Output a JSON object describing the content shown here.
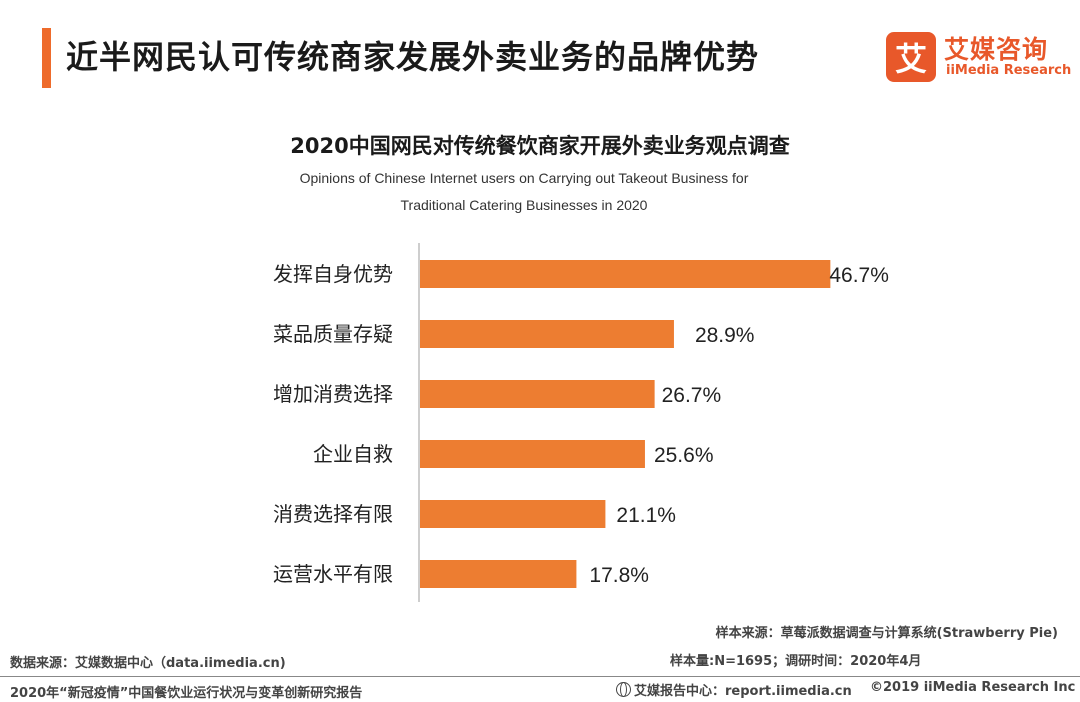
{
  "header": {
    "title": "近半网民认可传统商家发展外卖业务的品牌优势",
    "accent_color": "#ee6b2b"
  },
  "logo": {
    "mark": "艾",
    "name_cn": "艾媒咨询",
    "name_en": "iiMedia Research"
  },
  "chart_data": {
    "type": "bar",
    "orientation": "horizontal",
    "title": "2020中国网民对传统餐饮商家开展外卖业务观点调查",
    "subtitle_lines": [
      "Opinions of Chinese Internet users on Carrying out Takeout Business for",
      "Traditional Catering Businesses in 2020"
    ],
    "categories": [
      "发挥自身优势",
      "菜品质量存疑",
      "增加消费选择",
      "企业自救",
      "消费选择有限",
      "运营水平有限"
    ],
    "values": [
      46.7,
      28.9,
      26.7,
      25.6,
      21.1,
      17.8
    ],
    "value_labels": [
      "46.7%",
      "28.9%",
      "26.7%",
      "25.6%",
      "21.1%",
      "17.8%"
    ],
    "unit": "%",
    "xlim": [
      0,
      47
    ],
    "bar_color": "#ed7d31",
    "grid": false,
    "legend": "none"
  },
  "footer": {
    "sample_source": "样本来源：草莓派数据调查与计算系统(Strawberry Pie)",
    "sample_size": "样本量:N=1695；调研时间：2020年4月",
    "data_source": "数据来源：艾媒数据中心（data.iimedia.cn)",
    "report_name": "2020年“新冠疫情”中国餐饮业运行状况与变革创新研究报告",
    "report_center": "艾媒报告中心：report.iimedia.cn",
    "copyright": "©2019  iiMedia Research  Inc"
  }
}
